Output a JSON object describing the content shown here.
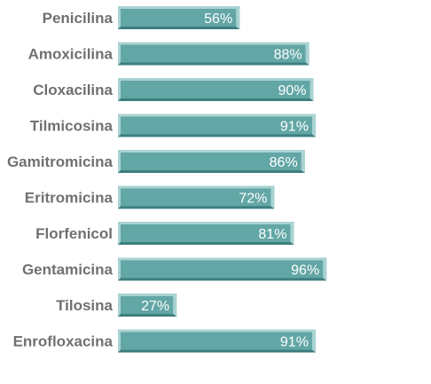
{
  "chart_data": {
    "type": "bar",
    "orientation": "horizontal",
    "categories": [
      "Penicilina",
      "Amoxicilina",
      "Cloxacilina",
      "Tilmicosina",
      "Gamitromicina",
      "Eritromicina",
      "Florfenicol",
      "Gentamicina",
      "Tilosina",
      "Enrofloxacina"
    ],
    "values": [
      56,
      88,
      90,
      91,
      86,
      72,
      81,
      96,
      27,
      91
    ],
    "value_labels": [
      "56%",
      "88%",
      "90%",
      "91%",
      "86%",
      "72%",
      "81%",
      "96%",
      "27%",
      "91%"
    ],
    "unit": "%",
    "xlim": [
      0,
      100
    ],
    "grid": false,
    "legend": "none",
    "title": "",
    "xlabel": "",
    "ylabel": "",
    "colors": {
      "bar_fill": "#62a6a5",
      "bar_light": "#a9d3d2",
      "bar_shadow": "#3d7f7e",
      "category_text": "#707070",
      "value_text": "#ffffff"
    }
  }
}
